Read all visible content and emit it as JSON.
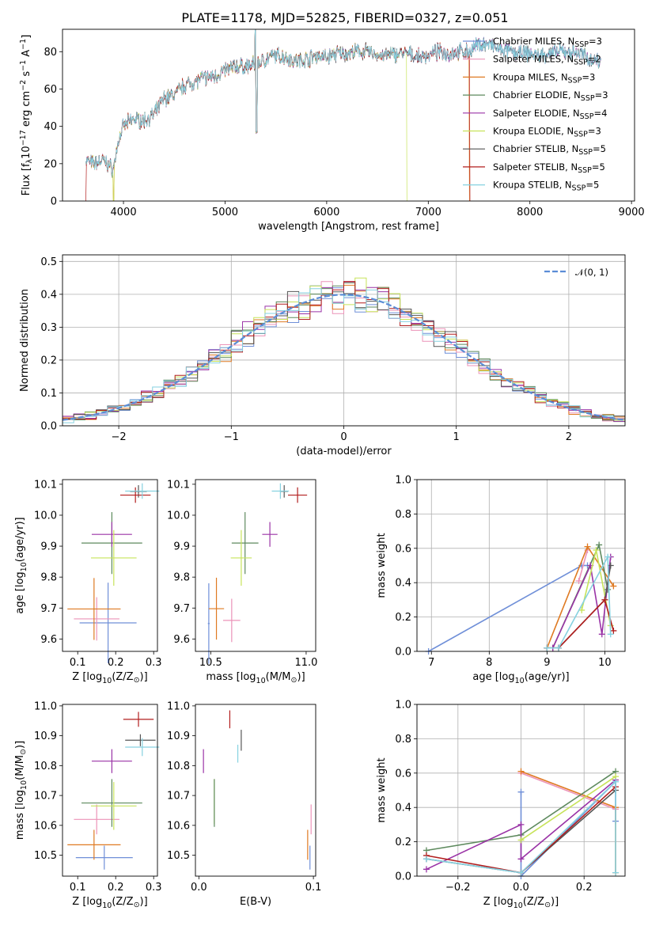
{
  "figure_title": "PLATE=1178, MJD=52825, FIBERID=0327, z=0.051",
  "colors": {
    "Chabrier MILES": "#6f8fd8",
    "Salpeter MILES": "#ec93b8",
    "Kroupa MILES": "#df7a22",
    "Chabrier ELODIE": "#5e8a5e",
    "Salpeter ELODIE": "#9a33a6",
    "Kroupa ELODIE": "#c7e35a",
    "Chabrier STELIB": "#555555",
    "Salpeter STELIB": "#b21e1e",
    "Kroupa STELIB": "#86d1e0",
    "normal_fit": "#5b8dd6"
  },
  "chart_data": [
    {
      "id": "spectrum",
      "type": "line",
      "xlabel": "wavelength [Angstrom, rest frame]",
      "ylabel": "Flux [f",
      "ylabel_parts": [
        "Flux [f",
        "λ",
        "10",
        "−17",
        " erg cm",
        "−2",
        " s",
        "−1",
        " A",
        "−1",
        "]"
      ],
      "xlim": [
        3400,
        9030
      ],
      "ylim": [
        0,
        92
      ],
      "xticks": [
        "4000",
        "5000",
        "6000",
        "7000",
        "8000",
        "9000"
      ],
      "yticks": [
        "0",
        "20",
        "40",
        "60",
        "80"
      ],
      "xtick_values": [
        4000,
        5000,
        6000,
        7000,
        8000,
        9000
      ],
      "ytick_values": [
        0,
        20,
        40,
        60,
        80
      ],
      "legend_position": "upper-right",
      "series": [
        {
          "name": "Chabrier MILES",
          "label_parts": [
            "Chabrier MILES, N",
            "SSP",
            "=3"
          ]
        },
        {
          "name": "Salpeter MILES",
          "label_parts": [
            "Salpeter MILES, N",
            "SSP",
            "=2"
          ]
        },
        {
          "name": "Kroupa MILES",
          "label_parts": [
            "Kroupa MILES, N",
            "SSP",
            "=3"
          ]
        },
        {
          "name": "Chabrier ELODIE",
          "label_parts": [
            "Chabrier ELODIE, N",
            "SSP",
            "=3"
          ]
        },
        {
          "name": "Salpeter ELODIE",
          "label_parts": [
            "Salpeter ELODIE, N",
            "SSP",
            "=4"
          ]
        },
        {
          "name": "Kroupa ELODIE",
          "label_parts": [
            "Kroupa ELODIE, N",
            "SSP",
            "=3"
          ]
        },
        {
          "name": "Chabrier STELIB",
          "label_parts": [
            "Chabrier STELIB, N",
            "SSP",
            "=5"
          ]
        },
        {
          "name": "Salpeter STELIB",
          "label_parts": [
            "Salpeter STELIB, N",
            "SSP",
            "=5"
          ]
        },
        {
          "name": "Kroupa STELIB",
          "label_parts": [
            "Kroupa STELIB, N",
            "SSP",
            "=5"
          ]
        }
      ],
      "continuum": {
        "x": [
          3630,
          3700,
          3800,
          3900,
          3950,
          4000,
          4100,
          4200,
          4300,
          4400,
          4500,
          4600,
          4700,
          4800,
          4900,
          5000,
          5100,
          5200,
          5300,
          5400,
          5500,
          5600,
          5700,
          5800,
          5900,
          6000,
          6100,
          6200,
          6300,
          6400,
          6500,
          6600,
          6700,
          6800,
          6900,
          7000,
          7100,
          7200,
          7300,
          7400,
          7500,
          7600,
          7700,
          7800,
          7900,
          8000,
          8100,
          8200,
          8300,
          8400,
          8500,
          8600,
          8700
        ],
        "y": [
          22,
          20,
          22,
          17,
          32,
          40,
          44,
          43,
          46,
          55,
          57,
          62,
          64,
          66,
          67,
          70,
          72,
          72,
          73,
          76,
          78,
          77,
          75,
          76,
          78,
          77,
          79,
          79,
          80,
          80,
          78,
          78,
          79,
          79,
          77,
          78,
          80,
          79,
          80,
          80,
          84,
          84,
          81,
          80,
          79,
          79,
          78,
          79,
          80,
          80,
          79,
          76,
          75
        ]
      },
      "dropouts": [
        {
          "name": "Kroupa MILES",
          "x_start": 3905,
          "x_end": 7405
        },
        {
          "name": "Kroupa ELODIE",
          "x_start": 3905,
          "x_end": 6790
        },
        {
          "name": "Salpeter STELIB",
          "x_start": 3630,
          "x_end": 7410
        }
      ]
    },
    {
      "id": "residuals",
      "type": "histogram",
      "xlabel": "(data-model)/error",
      "ylabel": "Normed distribution",
      "xlim": [
        -2.5,
        2.5
      ],
      "ylim": [
        0,
        0.52
      ],
      "xticks": [
        "−2",
        "−1",
        "0",
        "1",
        "2"
      ],
      "yticks": [
        "0.0",
        "0.1",
        "0.2",
        "0.3",
        "0.4",
        "0.5"
      ],
      "xtick_values": [
        -2,
        -1,
        0,
        1,
        2
      ],
      "ytick_values": [
        0,
        0.1,
        0.2,
        0.3,
        0.4,
        0.5
      ],
      "grid": true,
      "bin_width": 0.1,
      "legend": {
        "label": "𝒩(0, 1)",
        "position": "upper-right"
      }
    },
    {
      "id": "age_vs_Z",
      "type": "errorbar",
      "xlabel": "Z [log",
      "xlabel_parts": [
        "Z [log",
        "10",
        "(Z/Z",
        "⊙",
        ")]"
      ],
      "ylabel_parts": [
        "age  [log",
        "10",
        "(age/yr)]"
      ],
      "xlim": [
        0.06,
        0.31
      ],
      "ylim": [
        9.56,
        10.115
      ],
      "xticks": [
        "0.1",
        "0.2",
        "0.3"
      ],
      "yticks": [
        "9.6",
        "9.7",
        "9.8",
        "9.9",
        "10.0",
        "10.1"
      ],
      "xtick_values": [
        0.1,
        0.2,
        0.3
      ],
      "ytick_values": [
        9.6,
        9.7,
        9.8,
        9.9,
        10.0,
        10.1
      ],
      "points": [
        {
          "name": "Chabrier MILES",
          "x": 0.18,
          "xerr": 0.075,
          "y": 9.652,
          "yerr": 0.13
        },
        {
          "name": "Salpeter MILES",
          "x": 0.15,
          "xerr": 0.06,
          "y": 9.665,
          "yerr": 0.07
        },
        {
          "name": "Kroupa MILES",
          "x": 0.143,
          "xerr": 0.07,
          "y": 9.697,
          "yerr": 0.1
        },
        {
          "name": "Chabrier ELODIE",
          "x": 0.19,
          "xerr": 0.08,
          "y": 9.91,
          "yerr": 0.1
        },
        {
          "name": "Salpeter ELODIE",
          "x": 0.19,
          "xerr": 0.053,
          "y": 9.938,
          "yerr": 0.04
        },
        {
          "name": "Kroupa ELODIE",
          "x": 0.195,
          "xerr": 0.06,
          "y": 9.862,
          "yerr": 0.09
        },
        {
          "name": "Chabrier STELIB",
          "x": 0.26,
          "xerr": 0.022,
          "y": 10.077,
          "yerr": 0.02
        },
        {
          "name": "Salpeter STELIB",
          "x": 0.252,
          "xerr": 0.04,
          "y": 10.065,
          "yerr": 0.025
        },
        {
          "name": "Kroupa STELIB",
          "x": 0.27,
          "xerr": 0.045,
          "y": 10.078,
          "yerr": 0.025
        }
      ]
    },
    {
      "id": "age_vs_mass",
      "type": "errorbar",
      "xlabel_parts": [
        "mass [log",
        "10",
        "(M/M",
        "⊙",
        ")]"
      ],
      "xlim": [
        10.42,
        11.05
      ],
      "ylim": [
        9.56,
        10.115
      ],
      "xticks": [
        "10.5",
        "11.0"
      ],
      "yticks": [
        "9.6",
        "9.7",
        "9.8",
        "9.9",
        "10.0",
        "10.1"
      ],
      "xtick_values": [
        10.5,
        11.0
      ],
      "ytick_values": [
        9.6,
        9.7,
        9.8,
        9.9,
        10.0,
        10.1
      ],
      "points": [
        {
          "name": "Chabrier MILES",
          "x": 10.49,
          "xerr": 0.005,
          "y": 9.65,
          "yerr": 0.13
        },
        {
          "name": "Salpeter MILES",
          "x": 10.61,
          "xerr": 0.045,
          "y": 9.66,
          "yerr": 0.07
        },
        {
          "name": "Kroupa MILES",
          "x": 10.53,
          "xerr": 0.04,
          "y": 9.698,
          "yerr": 0.1
        },
        {
          "name": "Chabrier ELODIE",
          "x": 10.68,
          "xerr": 0.07,
          "y": 9.91,
          "yerr": 0.1
        },
        {
          "name": "Salpeter ELODIE",
          "x": 10.81,
          "xerr": 0.04,
          "y": 9.938,
          "yerr": 0.04
        },
        {
          "name": "Kroupa ELODIE",
          "x": 10.66,
          "xerr": 0.055,
          "y": 9.862,
          "yerr": 0.09
        },
        {
          "name": "Chabrier STELIB",
          "x": 10.885,
          "xerr": 0.02,
          "y": 10.077,
          "yerr": 0.02
        },
        {
          "name": "Salpeter STELIB",
          "x": 10.955,
          "xerr": 0.05,
          "y": 10.065,
          "yerr": 0.025
        },
        {
          "name": "Kroupa STELIB",
          "x": 10.865,
          "xerr": 0.045,
          "y": 10.078,
          "yerr": 0.025
        }
      ]
    },
    {
      "id": "massweight_vs_age",
      "type": "line",
      "xlabel_parts": [
        "age  [log",
        "10",
        "(age/yr)]"
      ],
      "ylabel": "mass weight",
      "xlim": [
        6.75,
        10.35
      ],
      "ylim": [
        0,
        1.0
      ],
      "xticks": [
        "7",
        "8",
        "9",
        "10"
      ],
      "yticks": [
        "0.0",
        "0.2",
        "0.4",
        "0.6",
        "0.8",
        "1.0"
      ],
      "xtick_values": [
        7,
        8,
        9,
        10
      ],
      "ytick_values": [
        0,
        0.2,
        0.4,
        0.6,
        0.8,
        1.0
      ],
      "grid": true,
      "series": [
        {
          "name": "Chabrier MILES",
          "x": [
            6.95,
            9.6,
            9.7
          ],
          "y": [
            0.0,
            0.5,
            0.5
          ]
        },
        {
          "name": "Salpeter MILES",
          "x": [
            9.55,
            9.7
          ],
          "y": [
            0.41,
            0.59
          ]
        },
        {
          "name": "Kroupa MILES",
          "x": [
            9.0,
            9.7,
            10.15
          ],
          "y": [
            0.02,
            0.61,
            0.38
          ]
        },
        {
          "name": "Chabrier ELODIE",
          "x": [
            9.1,
            9.9,
            10.05
          ],
          "y": [
            0.02,
            0.62,
            0.36
          ]
        },
        {
          "name": "Salpeter ELODIE",
          "x": [
            9.1,
            9.75,
            9.95,
            10.1
          ],
          "y": [
            0.02,
            0.5,
            0.1,
            0.55
          ]
        },
        {
          "name": "Kroupa ELODIE",
          "x": [
            9.6,
            9.85,
            10.1
          ],
          "y": [
            0.24,
            0.59,
            0.15
          ]
        },
        {
          "name": "Chabrier STELIB",
          "x": [
            9.0,
            9.2,
            10.0,
            10.1
          ],
          "y": [
            0.02,
            0.02,
            0.3,
            0.5
          ]
        },
        {
          "name": "Salpeter STELIB",
          "x": [
            9.0,
            9.2,
            10.0,
            10.15
          ],
          "y": [
            0.02,
            0.02,
            0.3,
            0.12
          ]
        },
        {
          "name": "Kroupa STELIB",
          "x": [
            9.0,
            9.2,
            10.05,
            10.1
          ],
          "y": [
            0.02,
            0.02,
            0.55,
            0.1
          ]
        }
      ]
    },
    {
      "id": "mass_vs_Z",
      "type": "errorbar",
      "xlabel_parts": [
        "Z [log",
        "10",
        "(Z/Z",
        "⊙",
        ")]"
      ],
      "ylabel_parts": [
        "mass [log",
        "10",
        "(M/M",
        "⊙",
        ")]"
      ],
      "xlim": [
        0.06,
        0.31
      ],
      "ylim": [
        10.43,
        11.005
      ],
      "xticks": [
        "0.1",
        "0.2",
        "0.3"
      ],
      "yticks": [
        "10.5",
        "10.6",
        "10.7",
        "10.8",
        "10.9",
        "11.0"
      ],
      "xtick_values": [
        0.1,
        0.2,
        0.3
      ],
      "ytick_values": [
        10.5,
        10.6,
        10.7,
        10.8,
        10.9,
        11.0
      ],
      "points": [
        {
          "name": "Chabrier MILES",
          "x": 0.17,
          "xerr": 0.075,
          "y": 10.492,
          "yerr": 0.04
        },
        {
          "name": "Salpeter MILES",
          "x": 0.15,
          "xerr": 0.06,
          "y": 10.62,
          "yerr": 0.05
        },
        {
          "name": "Kroupa MILES",
          "x": 0.143,
          "xerr": 0.07,
          "y": 10.535,
          "yerr": 0.05
        },
        {
          "name": "Chabrier ELODIE",
          "x": 0.19,
          "xerr": 0.08,
          "y": 10.675,
          "yerr": 0.08
        },
        {
          "name": "Salpeter ELODIE",
          "x": 0.19,
          "xerr": 0.053,
          "y": 10.815,
          "yerr": 0.04
        },
        {
          "name": "Kroupa ELODIE",
          "x": 0.195,
          "xerr": 0.06,
          "y": 10.665,
          "yerr": 0.08
        },
        {
          "name": "Chabrier STELIB",
          "x": 0.265,
          "xerr": 0.04,
          "y": 10.885,
          "yerr": 0.02
        },
        {
          "name": "Salpeter STELIB",
          "x": 0.26,
          "xerr": 0.04,
          "y": 10.955,
          "yerr": 0.025
        },
        {
          "name": "Kroupa STELIB",
          "x": 0.27,
          "xerr": 0.045,
          "y": 10.862,
          "yerr": 0.03
        }
      ]
    },
    {
      "id": "mass_vs_ebv",
      "type": "errorbar",
      "xlabel": "E(B-V)",
      "xlim": [
        -0.003,
        0.102
      ],
      "ylim": [
        10.43,
        11.005
      ],
      "xticks": [
        "0.0",
        "0.1"
      ],
      "yticks": [
        "10.5",
        "10.6",
        "10.7",
        "10.8",
        "10.9",
        "11.0"
      ],
      "xtick_values": [
        0.0,
        0.1
      ],
      "ytick_values": [
        10.5,
        10.6,
        10.7,
        10.8,
        10.9,
        11.0
      ],
      "points": [
        {
          "name": "Chabrier MILES",
          "x": 0.097,
          "xerr": 0.0,
          "y": 10.492,
          "yerr": 0.04
        },
        {
          "name": "Salpeter MILES",
          "x": 0.098,
          "xerr": 0.0,
          "y": 10.62,
          "yerr": 0.05
        },
        {
          "name": "Kroupa MILES",
          "x": 0.095,
          "xerr": 0.0,
          "y": 10.535,
          "yerr": 0.05
        },
        {
          "name": "Kroupa ELODIE",
          "x": 0.0135,
          "xerr": 0.0,
          "y": 10.68,
          "yerr": 0.075
        },
        {
          "name": "Chabrier ELODIE",
          "x": 0.0135,
          "xerr": 0.0,
          "y": 10.675,
          "yerr": 0.08
        },
        {
          "name": "Salpeter ELODIE",
          "x": 0.004,
          "xerr": 0.0,
          "y": 10.815,
          "yerr": 0.04
        },
        {
          "name": "Chabrier STELIB",
          "x": 0.037,
          "xerr": 0.0,
          "y": 10.885,
          "yerr": 0.035
        },
        {
          "name": "Salpeter STELIB",
          "x": 0.027,
          "xerr": 0.0,
          "y": 10.955,
          "yerr": 0.03
        },
        {
          "name": "Kroupa STELIB",
          "x": 0.034,
          "xerr": 0.0,
          "y": 10.84,
          "yerr": 0.03
        }
      ]
    },
    {
      "id": "massweight_vs_Z",
      "type": "line",
      "xlabel_parts": [
        "Z [log",
        "10",
        "(Z/Z",
        "⊙",
        ")]"
      ],
      "ylabel": "mass weight",
      "xlim": [
        -0.33,
        0.33
      ],
      "ylim": [
        0,
        1.0
      ],
      "xticks": [
        "−0.2",
        "0.0",
        "0.2"
      ],
      "yticks": [
        "0.0",
        "0.2",
        "0.4",
        "0.6",
        "0.8",
        "1.0"
      ],
      "xtick_values": [
        -0.2,
        0.0,
        0.2
      ],
      "ytick_values": [
        0,
        0.2,
        0.4,
        0.6,
        0.8,
        1.0
      ],
      "grid": true,
      "series": [
        {
          "name": "Chabrier MILES",
          "x": [
            0.0,
            0.0,
            0.3,
            0.3
          ],
          "y": [
            0.49,
            0.0,
            0.55,
            0.32
          ]
        },
        {
          "name": "Salpeter MILES",
          "x": [
            0.0,
            0.3
          ],
          "y": [
            0.6,
            0.39
          ]
        },
        {
          "name": "Kroupa MILES",
          "x": [
            0.0,
            0.3,
            0.3
          ],
          "y": [
            0.61,
            0.4,
            0.02
          ]
        },
        {
          "name": "Chabrier ELODIE",
          "x": [
            -0.3,
            0.0,
            0.3
          ],
          "y": [
            0.15,
            0.24,
            0.61
          ]
        },
        {
          "name": "Salpeter ELODIE",
          "x": [
            -0.3,
            0.0,
            0.0,
            0.3
          ],
          "y": [
            0.04,
            0.3,
            0.1,
            0.56
          ]
        },
        {
          "name": "Kroupa ELODIE",
          "x": [
            0.0,
            0.3
          ],
          "y": [
            0.21,
            0.58
          ]
        },
        {
          "name": "Chabrier STELIB",
          "x": [
            -0.3,
            0.0,
            0.3
          ],
          "y": [
            0.1,
            0.02,
            0.5
          ]
        },
        {
          "name": "Salpeter STELIB",
          "x": [
            -0.3,
            0.0,
            0.3
          ],
          "y": [
            0.12,
            0.02,
            0.52
          ]
        },
        {
          "name": "Kroupa STELIB",
          "x": [
            -0.3,
            0.0,
            0.3,
            0.3
          ],
          "y": [
            0.1,
            0.02,
            0.55,
            0.02
          ]
        }
      ]
    }
  ]
}
